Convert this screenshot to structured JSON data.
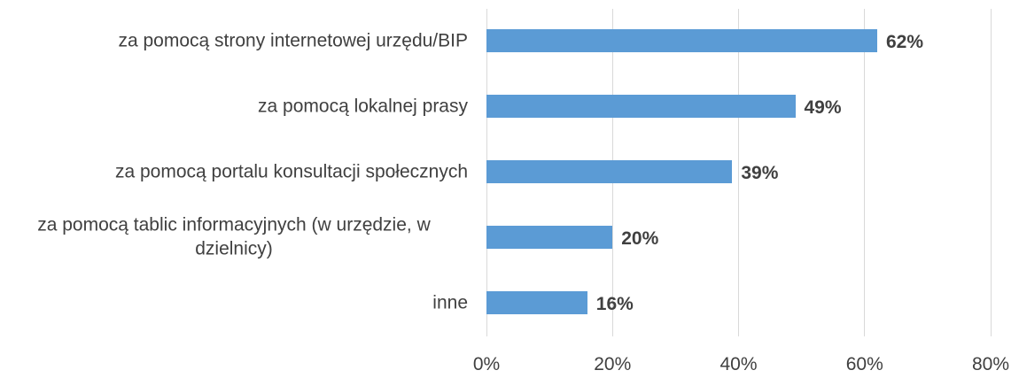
{
  "chart_data": {
    "type": "bar",
    "orientation": "horizontal",
    "categories": [
      "za pomocą strony internetowej urzędu/BIP",
      "za pomocą lokalnej prasy",
      "za pomocą portalu konsultacji społecznych",
      "za pomocą tablic informacyjnych (w urzędzie, w dzielnicy)",
      "inne"
    ],
    "values": [
      62,
      49,
      39,
      20,
      16
    ],
    "value_labels": [
      "62%",
      "49%",
      "39%",
      "20%",
      "16%"
    ],
    "color": "#5b9bd5",
    "xlim": [
      0,
      80
    ],
    "xticks": [
      {
        "value": 0,
        "label": "0%"
      },
      {
        "value": 20,
        "label": "20%"
      },
      {
        "value": 40,
        "label": "40%"
      },
      {
        "value": 60,
        "label": "60%"
      },
      {
        "value": 80,
        "label": "80%"
      }
    ],
    "grid": true
  }
}
